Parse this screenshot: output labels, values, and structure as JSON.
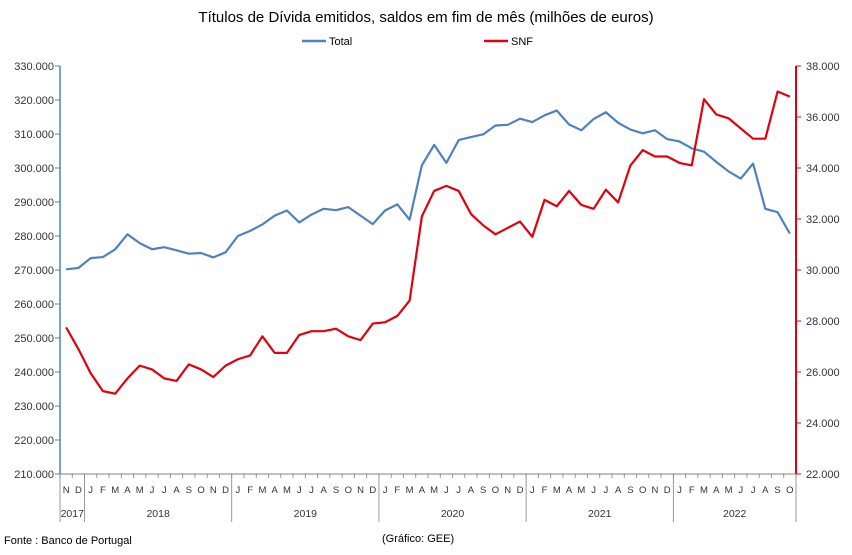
{
  "chart_data": {
    "type": "line",
    "title": "Títulos de Dívida emitidos, saldos em fim de mês  (milhões de euros)",
    "x": [
      "N",
      "D",
      "J",
      "F",
      "M",
      "A",
      "M",
      "J",
      "J",
      "A",
      "S",
      "O",
      "N",
      "D",
      "J",
      "F",
      "M",
      "A",
      "M",
      "J",
      "J",
      "A",
      "S",
      "O",
      "N",
      "D",
      "J",
      "F",
      "M",
      "A",
      "M",
      "J",
      "J",
      "A",
      "S",
      "O",
      "N",
      "D",
      "J",
      "F",
      "M",
      "A",
      "M",
      "J",
      "J",
      "A",
      "S",
      "O",
      "N",
      "D",
      "J",
      "F",
      "M",
      "A",
      "M",
      "J",
      "J",
      "A",
      "S",
      "O"
    ],
    "years": [
      {
        "label": "2017",
        "start": 0,
        "end": 1
      },
      {
        "label": "2018",
        "start": 2,
        "end": 13
      },
      {
        "label": "2019",
        "start": 14,
        "end": 25
      },
      {
        "label": "2020",
        "start": 26,
        "end": 37
      },
      {
        "label": "2021",
        "start": 38,
        "end": 49
      },
      {
        "label": "2022",
        "start": 50,
        "end": 59
      }
    ],
    "ylim_left": [
      210000,
      330000
    ],
    "yticks_left": [
      "210.000",
      "220.000",
      "230.000",
      "240.000",
      "250.000",
      "260.000",
      "270.000",
      "280.000",
      "290.000",
      "300.000",
      "310.000",
      "320.000",
      "330.000"
    ],
    "ylim_right": [
      22000,
      38000
    ],
    "yticks_right": [
      "22.000",
      "24.000",
      "26.000",
      "28.000",
      "30.000",
      "32.000",
      "34.000",
      "36.000",
      "38.000"
    ],
    "legend_position": "top-center",
    "series": [
      {
        "name": "Total",
        "axis": "left",
        "color": "#4f81bd",
        "values": [
          270200,
          270600,
          273500,
          273800,
          276100,
          280500,
          277900,
          276100,
          276700,
          275800,
          274800,
          275000,
          273700,
          275200,
          280000,
          281500,
          283400,
          286000,
          287500,
          284000,
          286300,
          288000,
          287600,
          288500,
          286000,
          283500,
          287500,
          289300,
          284800,
          300800,
          306800,
          301500,
          308200,
          309100,
          309900,
          312500,
          312700,
          314500,
          313500,
          315500,
          316900,
          312800,
          311100,
          314400,
          316400,
          313300,
          311300,
          310200,
          311100,
          308500,
          307800,
          305800,
          304800,
          301800,
          299000,
          296900,
          301300,
          288000,
          287000,
          280700
        ]
      },
      {
        "name": "SNF",
        "axis": "right",
        "color": "#e0000f",
        "values": [
          27750,
          26900,
          25950,
          25250,
          25150,
          25750,
          26250,
          26100,
          25750,
          25650,
          26300,
          26100,
          25800,
          26250,
          26500,
          26650,
          27400,
          26750,
          26750,
          27450,
          27600,
          27600,
          27700,
          27400,
          27250,
          27900,
          27950,
          28200,
          28800,
          32100,
          33100,
          33300,
          33100,
          32200,
          31750,
          31400,
          31650,
          31900,
          31300,
          32750,
          32500,
          33100,
          32550,
          32400,
          33150,
          32650,
          34100,
          34700,
          34450,
          34450,
          34200,
          34100,
          36700,
          36100,
          35950,
          35550,
          35150,
          35150,
          37000,
          36800
        ]
      }
    ]
  },
  "source_note": "Fonte : Banco de Portugal",
  "credit_note": "(Gráfico: GEE)"
}
